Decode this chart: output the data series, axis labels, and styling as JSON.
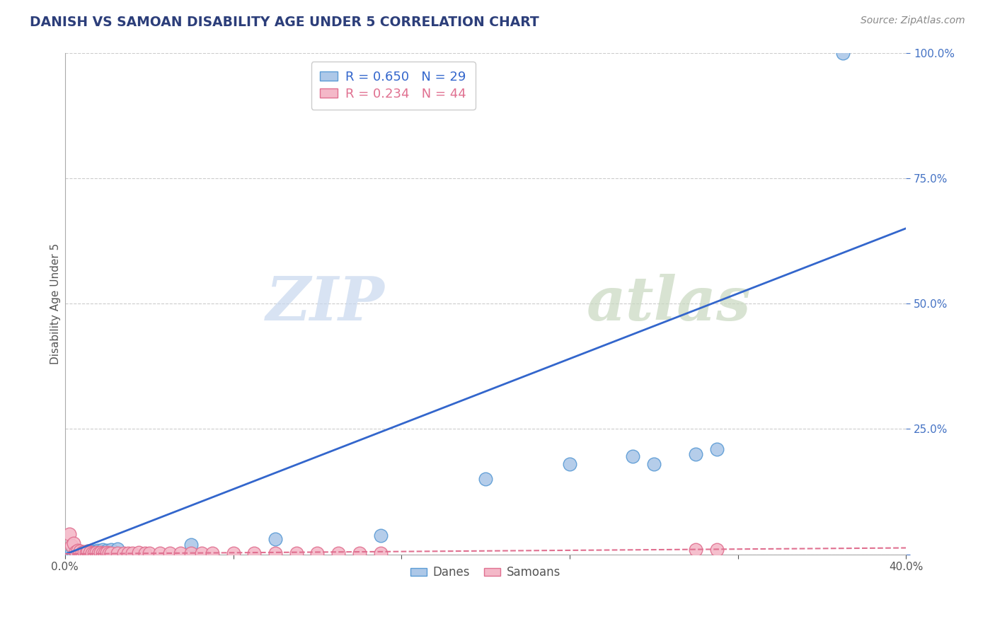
{
  "title": "DANISH VS SAMOAN DISABILITY AGE UNDER 5 CORRELATION CHART",
  "source": "Source: ZipAtlas.com",
  "xlabel": "",
  "ylabel": "Disability Age Under 5",
  "xlim": [
    0.0,
    0.4
  ],
  "ylim": [
    0.0,
    1.0
  ],
  "xticks": [
    0.0,
    0.08,
    0.16,
    0.24,
    0.32,
    0.4
  ],
  "yticks": [
    0.0,
    0.25,
    0.5,
    0.75,
    1.0
  ],
  "ytick_labels": [
    "",
    "25.0%",
    "50.0%",
    "75.0%",
    "100.0%"
  ],
  "danes_color": "#adc8e8",
  "danes_edge_color": "#5b9bd5",
  "samoans_color": "#f4b8c8",
  "samoans_edge_color": "#e07090",
  "danes_line_color": "#3366cc",
  "samoans_line_color": "#e07090",
  "danes_R": 0.65,
  "danes_N": 29,
  "samoans_R": 0.234,
  "samoans_N": 44,
  "watermark_zip": "ZIP",
  "watermark_atlas": "atlas",
  "grid_color": "#cccccc",
  "danes_line_slope": 1.625,
  "danes_line_intercept": 0.0,
  "samoans_line_slope": 0.03,
  "samoans_line_intercept": 0.001,
  "danes_scatter": [
    [
      0.003,
      0.003
    ],
    [
      0.004,
      0.002
    ],
    [
      0.005,
      0.004
    ],
    [
      0.006,
      0.003
    ],
    [
      0.007,
      0.004
    ],
    [
      0.008,
      0.005
    ],
    [
      0.009,
      0.003
    ],
    [
      0.01,
      0.004
    ],
    [
      0.011,
      0.006
    ],
    [
      0.012,
      0.005
    ],
    [
      0.013,
      0.004
    ],
    [
      0.014,
      0.006
    ],
    [
      0.015,
      0.007
    ],
    [
      0.016,
      0.008
    ],
    [
      0.017,
      0.006
    ],
    [
      0.018,
      0.01
    ],
    [
      0.02,
      0.008
    ],
    [
      0.022,
      0.009
    ],
    [
      0.025,
      0.011
    ],
    [
      0.06,
      0.02
    ],
    [
      0.1,
      0.03
    ],
    [
      0.27,
      0.195
    ],
    [
      0.28,
      0.18
    ],
    [
      0.3,
      0.2
    ],
    [
      0.31,
      0.21
    ],
    [
      0.15,
      0.038
    ],
    [
      0.2,
      0.15
    ],
    [
      0.37,
      1.0
    ],
    [
      0.24,
      0.18
    ]
  ],
  "samoans_scatter": [
    [
      0.002,
      0.04
    ],
    [
      0.003,
      0.018
    ],
    [
      0.004,
      0.022
    ],
    [
      0.005,
      0.005
    ],
    [
      0.006,
      0.008
    ],
    [
      0.007,
      0.006
    ],
    [
      0.008,
      0.004
    ],
    [
      0.009,
      0.005
    ],
    [
      0.01,
      0.004
    ],
    [
      0.011,
      0.006
    ],
    [
      0.012,
      0.004
    ],
    [
      0.013,
      0.003
    ],
    [
      0.014,
      0.003
    ],
    [
      0.015,
      0.004
    ],
    [
      0.016,
      0.003
    ],
    [
      0.017,
      0.004
    ],
    [
      0.018,
      0.003
    ],
    [
      0.019,
      0.003
    ],
    [
      0.02,
      0.004
    ],
    [
      0.021,
      0.003
    ],
    [
      0.022,
      0.003
    ],
    [
      0.025,
      0.003
    ],
    [
      0.028,
      0.003
    ],
    [
      0.03,
      0.003
    ],
    [
      0.032,
      0.003
    ],
    [
      0.035,
      0.004
    ],
    [
      0.038,
      0.003
    ],
    [
      0.04,
      0.003
    ],
    [
      0.045,
      0.003
    ],
    [
      0.05,
      0.003
    ],
    [
      0.055,
      0.003
    ],
    [
      0.06,
      0.003
    ],
    [
      0.065,
      0.003
    ],
    [
      0.07,
      0.003
    ],
    [
      0.08,
      0.003
    ],
    [
      0.09,
      0.003
    ],
    [
      0.1,
      0.003
    ],
    [
      0.11,
      0.003
    ],
    [
      0.12,
      0.003
    ],
    [
      0.13,
      0.003
    ],
    [
      0.14,
      0.003
    ],
    [
      0.15,
      0.003
    ],
    [
      0.3,
      0.01
    ],
    [
      0.31,
      0.01
    ]
  ]
}
